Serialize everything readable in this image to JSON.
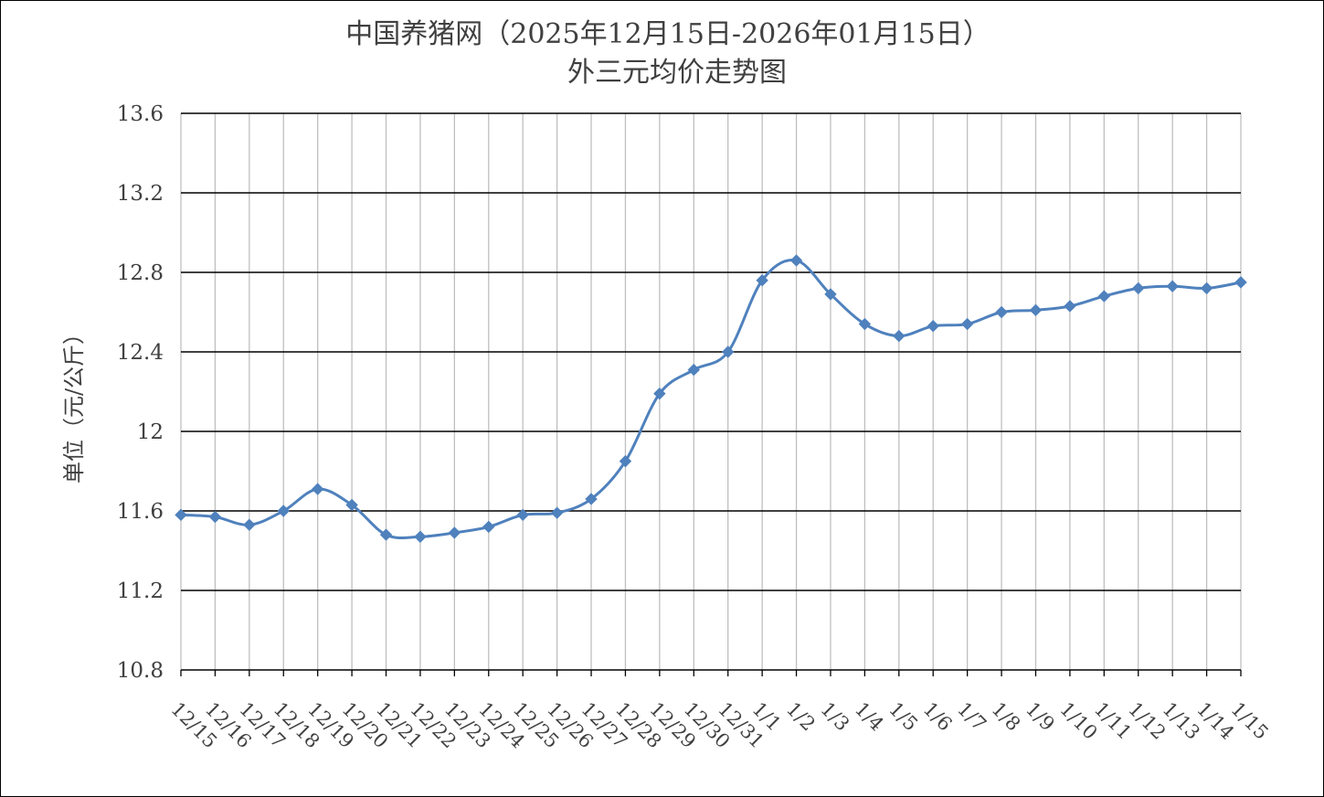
{
  "chart_data": {
    "type": "line",
    "title_line1": "中国养猪网（2025年12月15日-2026年01月15日）",
    "title_line2": "外三元均价走势图",
    "xlabel": "",
    "ylabel": "单位（元/公斤）",
    "ylim": [
      10.8,
      13.6
    ],
    "yticks": [
      "13.6",
      "13.2",
      "12.8",
      "12.4",
      "12",
      "11.6",
      "11.2",
      "10.8"
    ],
    "ytick_values": [
      13.6,
      13.2,
      12.8,
      12.4,
      12.0,
      11.6,
      11.2,
      10.8
    ],
    "grid": true,
    "legend": "none",
    "series_color": "#4F81BD",
    "categories": [
      "12/15",
      "12/16",
      "12/17",
      "12/18",
      "12/19",
      "12/20",
      "12/21",
      "12/22",
      "12/23",
      "12/24",
      "12/25",
      "12/26",
      "12/27",
      "12/28",
      "12/29",
      "12/30",
      "12/31",
      "1/1",
      "1/2",
      "1/3",
      "1/4",
      "1/5",
      "1/6",
      "1/7",
      "1/8",
      "1/9",
      "1/10",
      "1/11",
      "1/12",
      "1/13",
      "1/14",
      "1/15"
    ],
    "values": [
      11.58,
      11.57,
      11.53,
      11.6,
      11.71,
      11.63,
      11.48,
      11.47,
      11.49,
      11.52,
      11.58,
      11.59,
      11.66,
      11.85,
      12.19,
      12.31,
      12.4,
      12.76,
      12.86,
      12.69,
      12.54,
      12.48,
      12.53,
      12.54,
      12.6,
      12.61,
      12.63,
      12.68,
      12.72,
      12.73,
      12.72,
      12.75
    ]
  }
}
